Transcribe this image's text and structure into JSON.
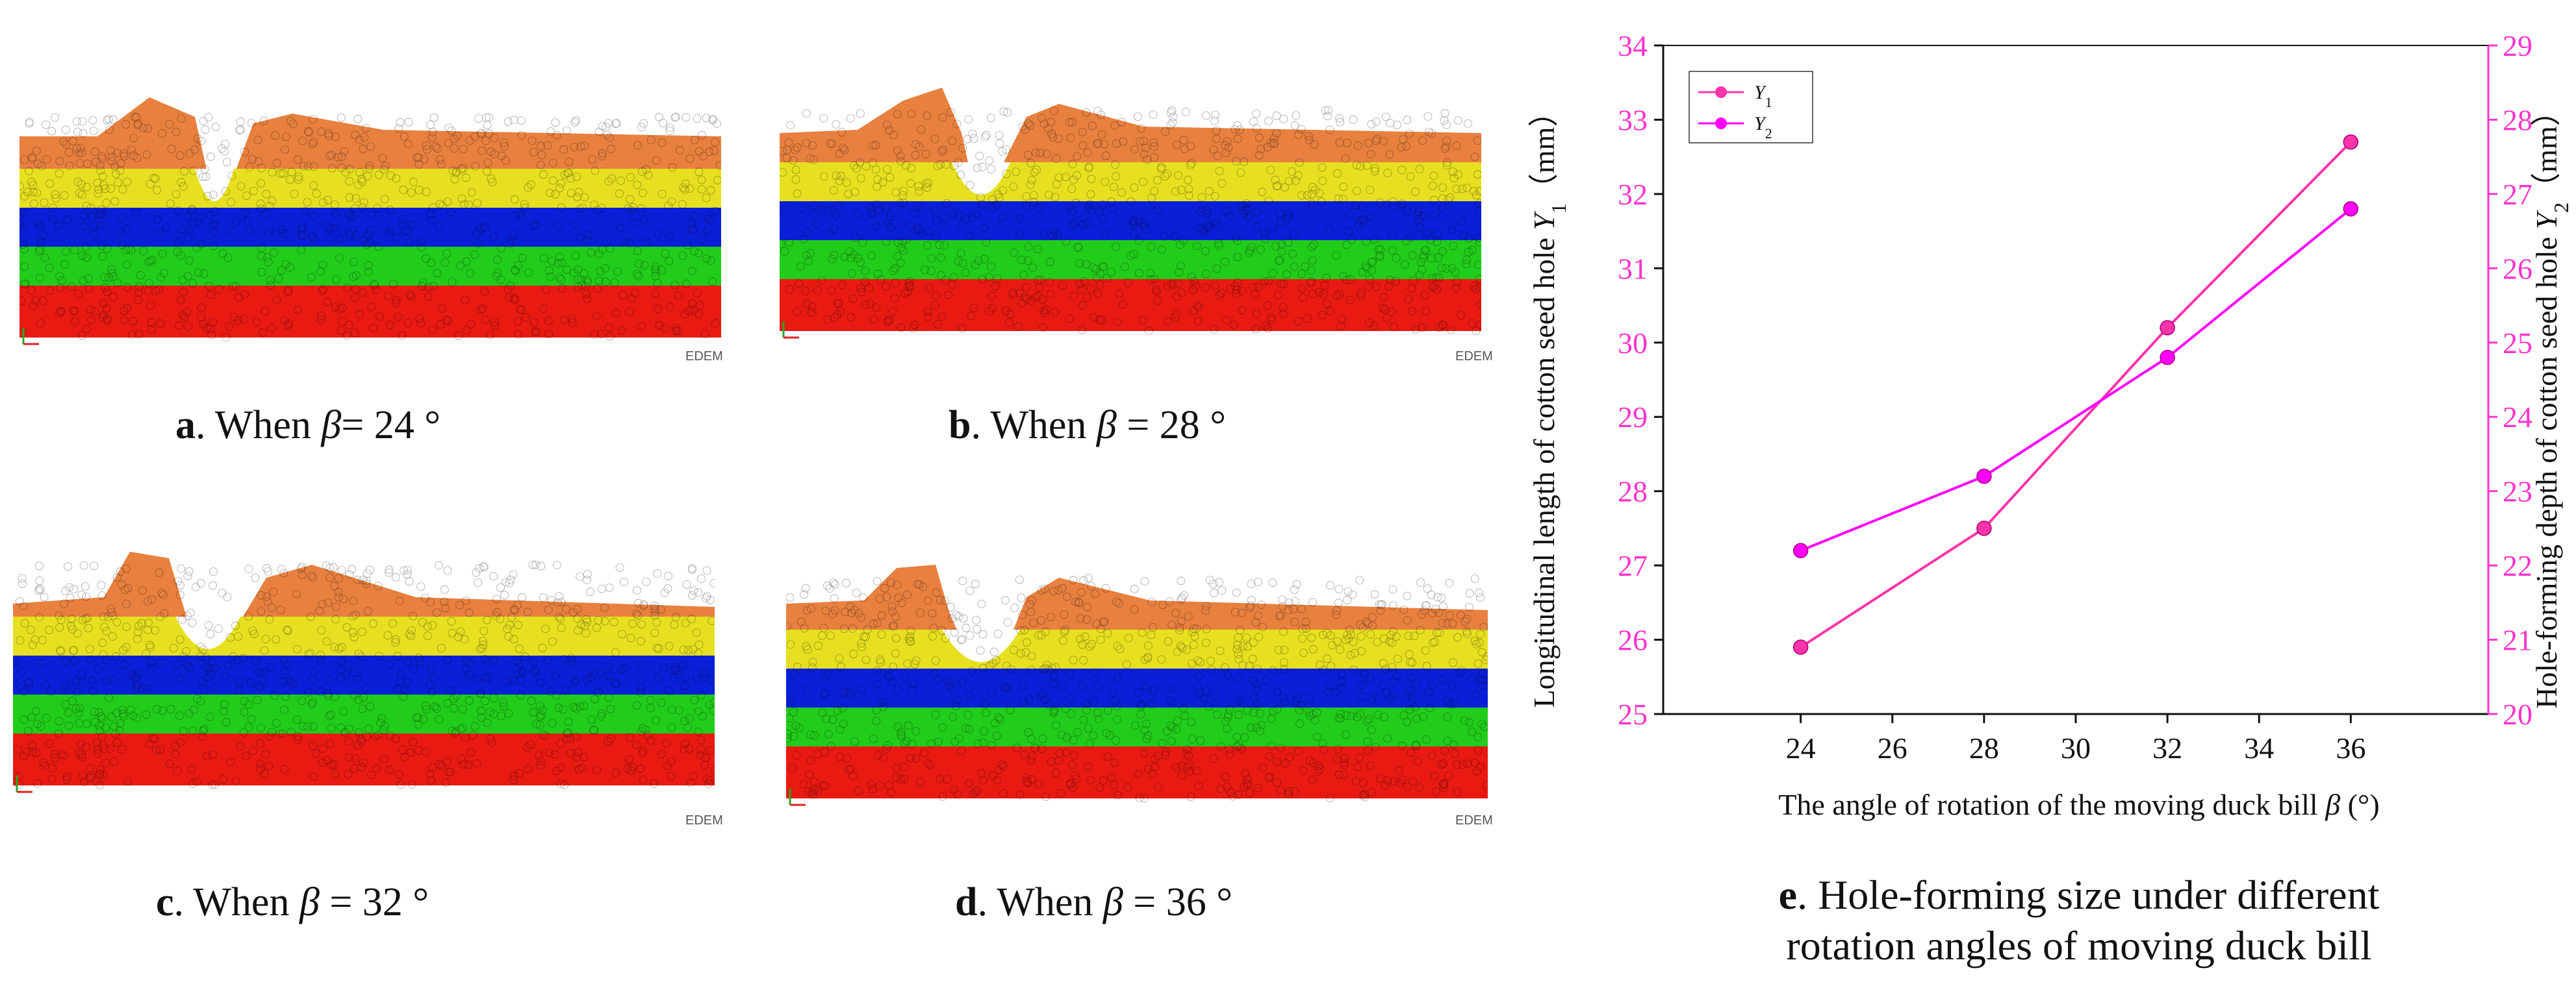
{
  "panels": [
    {
      "letter": "a",
      "text_pre": ". When ",
      "symbol": "β",
      "text_post": "= 24 °",
      "angle": 24
    },
    {
      "letter": "b",
      "text_pre": ". When ",
      "symbol": "β",
      "text_post": " = 28 °",
      "angle": 28
    },
    {
      "letter": "c",
      "text_pre": ". When ",
      "symbol": "β",
      "text_post": " = 32 °",
      "angle": 32
    },
    {
      "letter": "d",
      "text_pre": ". When ",
      "symbol": "β",
      "text_post": " = 36 °",
      "angle": 36
    }
  ],
  "watermark": "EDEM",
  "layer_colors": {
    "top": "#e8803f",
    "layer2": "#e6e020",
    "layer3": "#0a1fd8",
    "layer4": "#22cc1a",
    "bottom": "#e81a12"
  },
  "chart_data": {
    "type": "line",
    "x": [
      24,
      28,
      32,
      36
    ],
    "xlim": [
      21,
      39
    ],
    "xticks": [
      24,
      26,
      28,
      30,
      32,
      34,
      36
    ],
    "series": [
      {
        "name": "Y1",
        "name_main": "Y",
        "name_sub": "1",
        "axis": "left",
        "values": [
          25.9,
          27.5,
          30.2,
          32.7
        ],
        "color": "#ff33aa"
      },
      {
        "name": "Y2",
        "name_main": "Y",
        "name_sub": "2",
        "axis": "right",
        "values": [
          22.2,
          23.2,
          24.8,
          26.8
        ],
        "color": "#ff00ff"
      }
    ],
    "ylim_left": [
      25,
      34
    ],
    "yticks_left": [
      25,
      26,
      27,
      28,
      29,
      30,
      31,
      32,
      33,
      34
    ],
    "ylim_right": [
      20,
      29
    ],
    "yticks_right": [
      20,
      21,
      22,
      23,
      24,
      25,
      26,
      27,
      28,
      29
    ],
    "xlabel_main": "The angle of rotation of the moving duck bill ",
    "xlabel_symbol": "β",
    "xlabel_unit": " (°)",
    "ylabel_left_main": "Longitudinal length of cotton seed hole ",
    "ylabel_left_symbol": "Y",
    "ylabel_left_sub": "1",
    "ylabel_left_unit": "（mm）",
    "ylabel_right_main": "Hole-forming depth of cotton seed hole ",
    "ylabel_right_symbol": "Y",
    "ylabel_right_sub": "2",
    "ylabel_right_unit": "（mm）",
    "right_axis_color": "#ff33cc"
  },
  "caption_e": {
    "letter": "e",
    "line1": ". Hole-forming size under different",
    "line2": "rotation angles of moving duck bill"
  }
}
